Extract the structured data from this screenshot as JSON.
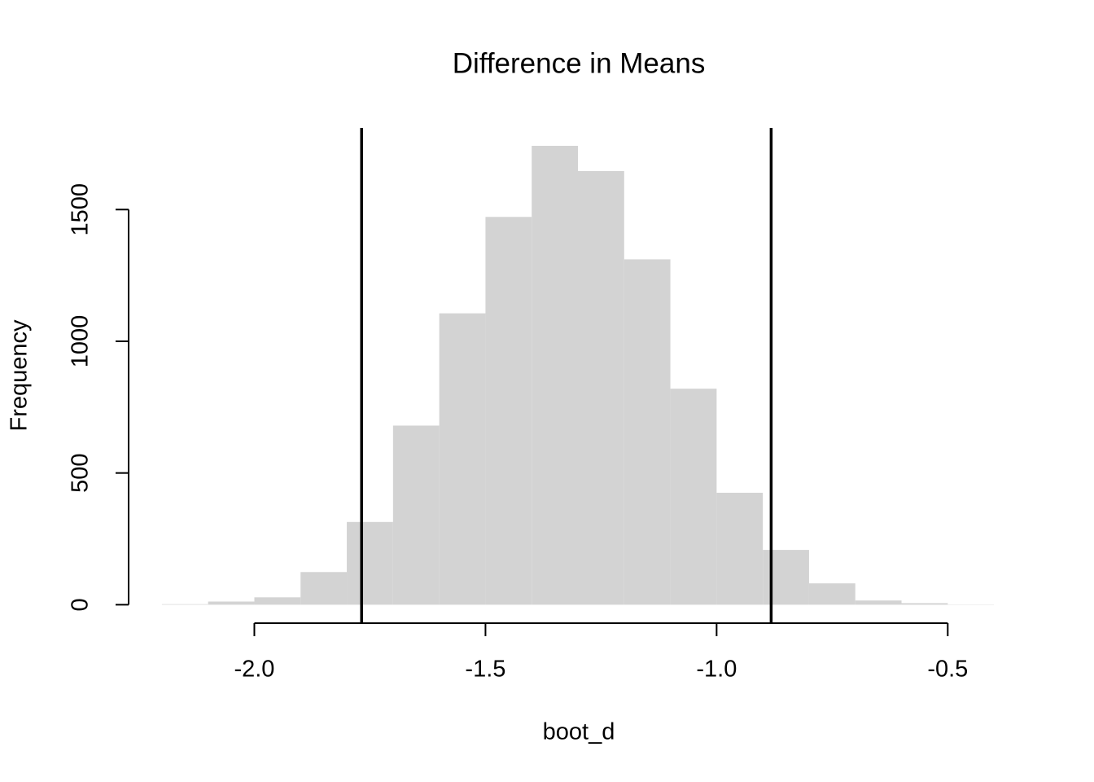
{
  "chart_data": {
    "type": "histogram",
    "title": "Difference in Means",
    "x_label": "boot_d",
    "y_label": "Frequency",
    "bins": [
      -2.2,
      -2.1,
      -2.0,
      -1.9,
      -1.8,
      -1.7,
      -1.6,
      -1.5,
      -1.4,
      -1.3,
      -1.2,
      -1.1,
      -1.0,
      -0.9,
      -0.8,
      -0.7,
      -0.6,
      -0.5,
      -0.4
    ],
    "counts": [
      2,
      12,
      28,
      124,
      314,
      680,
      1106,
      1472,
      1742,
      1646,
      1311,
      820,
      425,
      208,
      81,
      16,
      6,
      1
    ],
    "color": "#d3d3d3",
    "vlines": [
      -1.768,
      -0.882
    ],
    "vline_color": "#000000",
    "xlim": [
      -2.272,
      -0.328
    ],
    "ylim": [
      -70,
      1810
    ],
    "xticks": [
      {
        "value": -2.0,
        "label": "-2.0"
      },
      -1.5,
      {
        "value": -1.0,
        "label": "-1.0"
      },
      -0.5
    ],
    "yticks": [
      0,
      500,
      1000,
      1500
    ]
  }
}
